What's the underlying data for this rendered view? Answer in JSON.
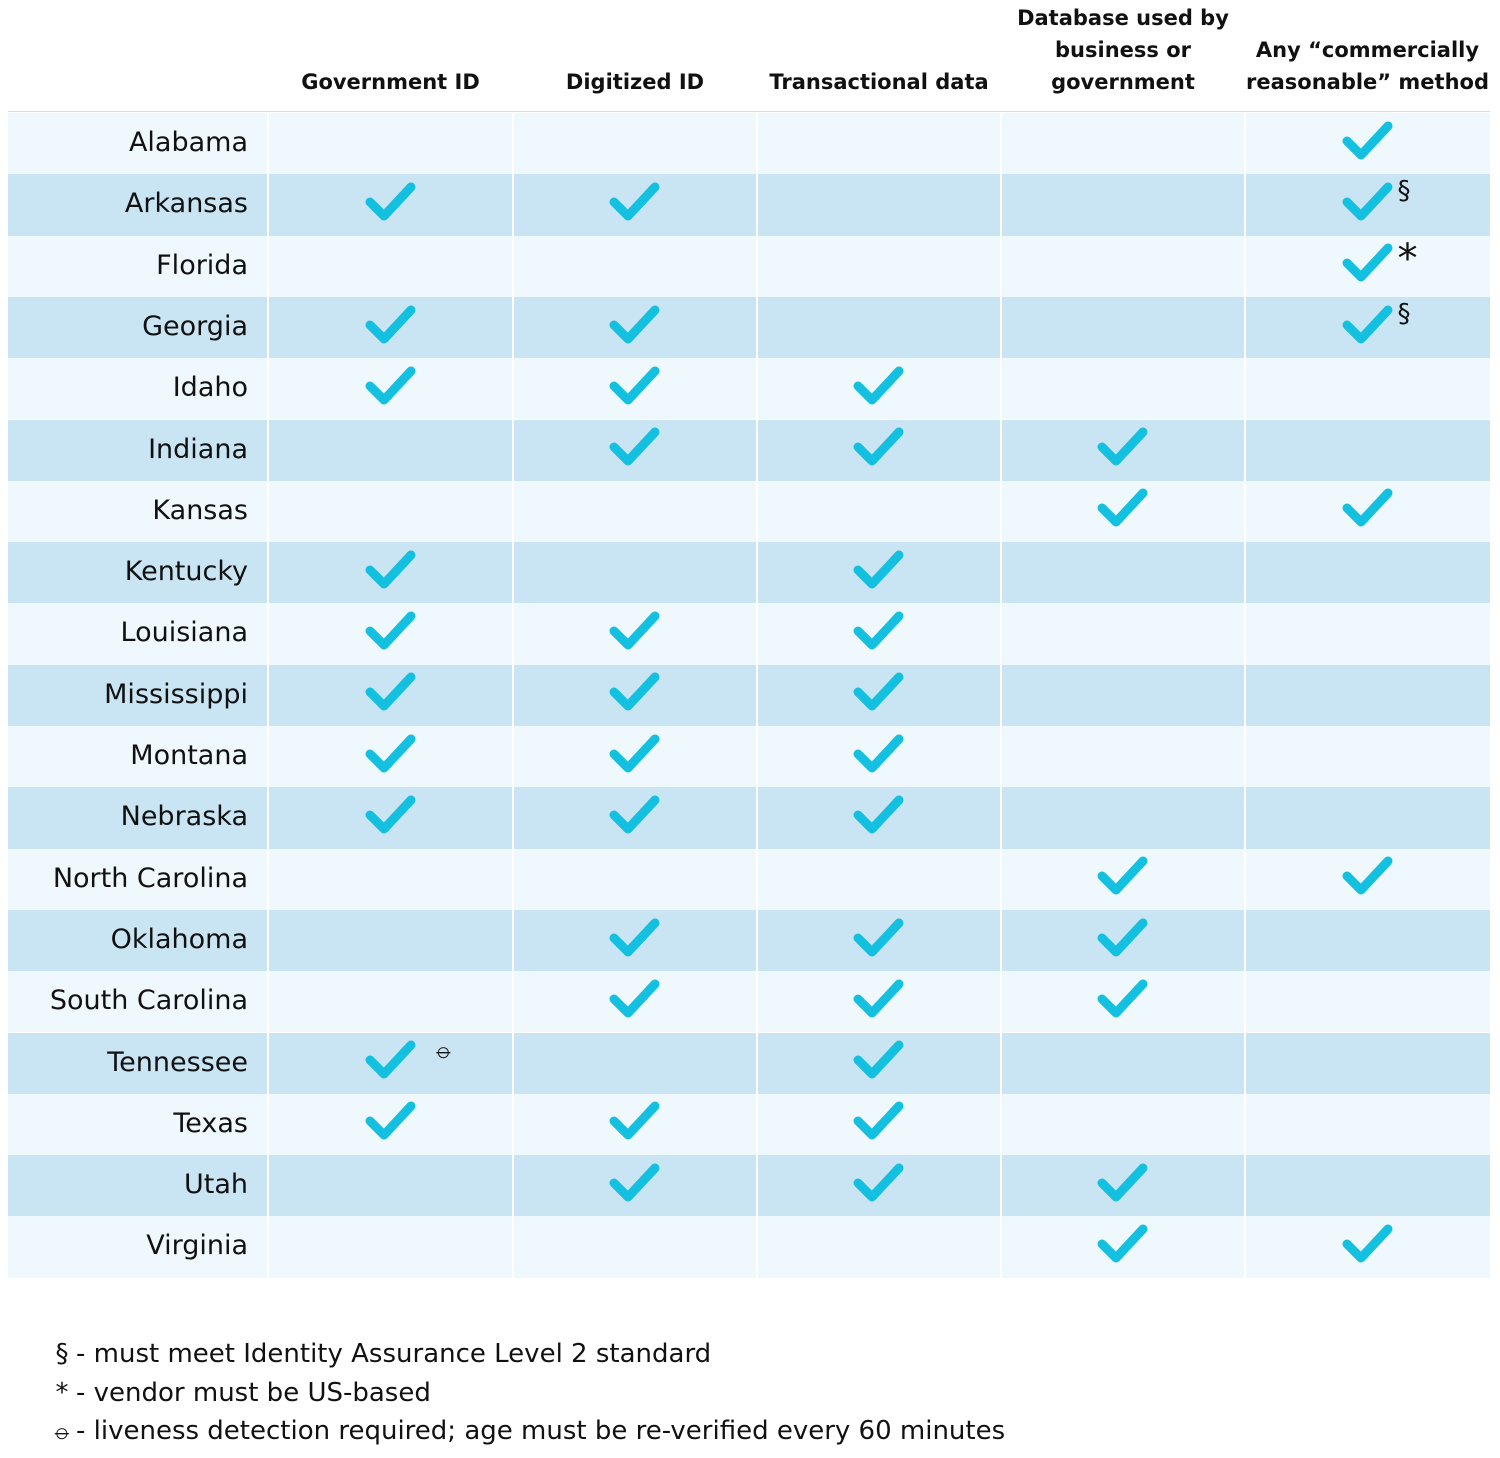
{
  "table": {
    "columns": [
      "Government ID",
      "Digitized ID",
      "Transactional data",
      "Database used by business or government",
      "Any “commercially reasonable” method"
    ],
    "rows": [
      {
        "state": "Alabama",
        "cells": [
          false,
          false,
          false,
          false,
          true
        ]
      },
      {
        "state": "Arkansas",
        "cells": [
          true,
          true,
          false,
          false,
          {
            "check": true,
            "note": "§"
          }
        ]
      },
      {
        "state": "Florida",
        "cells": [
          false,
          false,
          false,
          false,
          {
            "check": true,
            "note": "*"
          }
        ]
      },
      {
        "state": "Georgia",
        "cells": [
          true,
          true,
          false,
          false,
          {
            "check": true,
            "note": "§"
          }
        ]
      },
      {
        "state": "Idaho",
        "cells": [
          true,
          true,
          true,
          false,
          false
        ]
      },
      {
        "state": "Indiana",
        "cells": [
          false,
          true,
          true,
          true,
          false
        ]
      },
      {
        "state": "Kansas",
        "cells": [
          false,
          false,
          false,
          true,
          true
        ]
      },
      {
        "state": "Kentucky",
        "cells": [
          true,
          false,
          true,
          false,
          false
        ]
      },
      {
        "state": "Louisiana",
        "cells": [
          true,
          true,
          true,
          false,
          false
        ]
      },
      {
        "state": "Mississippi",
        "cells": [
          true,
          true,
          true,
          false,
          false
        ]
      },
      {
        "state": "Montana",
        "cells": [
          true,
          true,
          true,
          false,
          false
        ]
      },
      {
        "state": "Nebraska",
        "cells": [
          true,
          true,
          true,
          false,
          false
        ]
      },
      {
        "state": "North Carolina",
        "cells": [
          false,
          false,
          false,
          true,
          true
        ]
      },
      {
        "state": "Oklahoma",
        "cells": [
          false,
          true,
          true,
          true,
          false
        ]
      },
      {
        "state": "South Carolina",
        "cells": [
          false,
          true,
          true,
          true,
          false
        ]
      },
      {
        "state": "Tennessee",
        "cells": [
          {
            "check": true,
            "note": "⦵"
          },
          false,
          true,
          false,
          false
        ]
      },
      {
        "state": "Texas",
        "cells": [
          true,
          true,
          true,
          false,
          false
        ]
      },
      {
        "state": "Utah",
        "cells": [
          false,
          true,
          true,
          true,
          false
        ]
      },
      {
        "state": "Virginia",
        "cells": [
          false,
          false,
          false,
          true,
          true
        ]
      }
    ]
  },
  "footnotes": [
    {
      "symbol": "§",
      "text": "- must meet Identity Assurance Level 2 standard"
    },
    {
      "symbol": "*",
      "text": "- vendor must be US-based"
    },
    {
      "symbol": "⦵",
      "text": "- liveness detection required; age must be re-verified every 60 minutes"
    }
  ]
}
